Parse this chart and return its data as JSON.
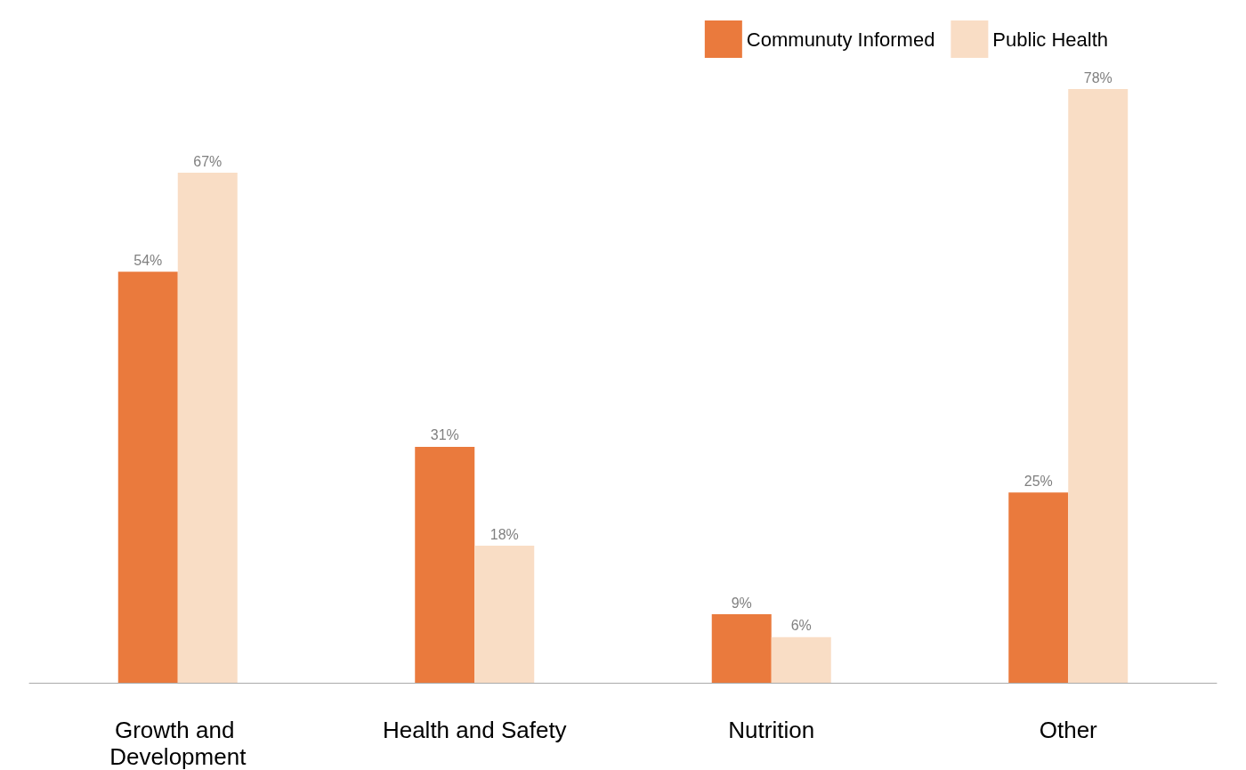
{
  "chart_data": {
    "type": "bar",
    "categories": [
      "Growth and Development",
      "Health and Safety",
      "Nutrition",
      "Other"
    ],
    "series": [
      {
        "name": "Communuty Informed",
        "color": "#ea7a3d",
        "values": [
          54,
          31,
          9,
          25
        ],
        "value_labels": [
          "54%",
          "31%",
          "9%",
          "25%"
        ]
      },
      {
        "name": "Public Health",
        "color": "#f9ddc5",
        "values": [
          67,
          18,
          6,
          78
        ],
        "value_labels": [
          "67%",
          "18%",
          "6%",
          "78%"
        ]
      }
    ],
    "legend": "top right",
    "grid": false
  }
}
